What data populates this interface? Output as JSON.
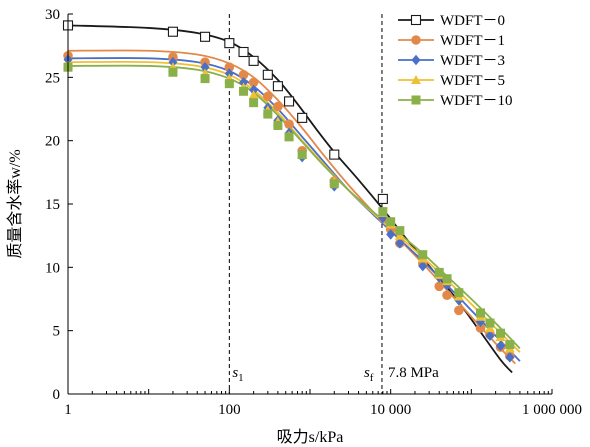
{
  "chart_data": {
    "type": "scatter",
    "title": "",
    "xlabel": "吸力s/kPa",
    "ylabel": "质量含水率w/%",
    "xscale": "log",
    "xlim": [
      1,
      1000000
    ],
    "ylim": [
      0,
      30
    ],
    "xticks": [
      1,
      100,
      10000,
      1000000
    ],
    "xtick_labels": [
      "1",
      "100",
      "10 000",
      "1 000 000"
    ],
    "yticks": [
      0,
      5,
      10,
      15,
      20,
      25,
      30
    ],
    "ytick_labels": [
      "0",
      "5",
      "10",
      "15",
      "20",
      "25",
      "30"
    ],
    "grid": false,
    "legend_position": "top-right",
    "vlines": [
      {
        "x": 100,
        "label": "s",
        "sub": "1"
      },
      {
        "x": 7800,
        "label": "s",
        "sub": "f"
      }
    ],
    "annotations": [
      {
        "text": "7.8 MPa",
        "x": 9000,
        "y": 2
      }
    ],
    "series": [
      {
        "name": "WDFT－0",
        "color": "#1a1a1a",
        "marker": "open-square",
        "points": [
          [
            1,
            29.1
          ],
          [
            20,
            28.6
          ],
          [
            50,
            28.2
          ],
          [
            100,
            27.7
          ],
          [
            150,
            27.0
          ],
          [
            200,
            26.3
          ],
          [
            300,
            25.2
          ],
          [
            400,
            24.3
          ],
          [
            550,
            23.1
          ],
          [
            800,
            21.8
          ],
          [
            2000,
            18.9
          ],
          [
            8000,
            15.4
          ]
        ],
        "fit": [
          [
            1,
            29.1
          ],
          [
            10,
            28.9
          ],
          [
            40,
            28.5
          ],
          [
            100,
            27.8
          ],
          [
            200,
            26.6
          ],
          [
            400,
            24.8
          ],
          [
            700,
            22.9
          ],
          [
            1200,
            20.9
          ],
          [
            2000,
            19.1
          ],
          [
            4000,
            16.9
          ],
          [
            8000,
            14.6
          ],
          [
            15000,
            12.4
          ],
          [
            30000,
            10.1
          ],
          [
            60000,
            7.8
          ],
          [
            120000,
            5.2
          ],
          [
            230000,
            2.7
          ],
          [
            320000,
            1.7
          ]
        ]
      },
      {
        "name": "WDFT－1",
        "color": "#e2894a",
        "marker": "circle",
        "points": [
          [
            1,
            26.7
          ],
          [
            20,
            26.6
          ],
          [
            50,
            26.2
          ],
          [
            100,
            25.8
          ],
          [
            150,
            25.2
          ],
          [
            200,
            24.6
          ],
          [
            300,
            23.5
          ],
          [
            400,
            22.7
          ],
          [
            550,
            21.3
          ],
          [
            800,
            19.2
          ],
          [
            2000,
            16.8
          ],
          [
            8000,
            13.9
          ],
          [
            10000,
            13.0
          ],
          [
            13000,
            11.9
          ],
          [
            25000,
            10.3
          ],
          [
            40000,
            8.5
          ],
          [
            50000,
            7.8
          ],
          [
            70000,
            6.6
          ],
          [
            130000,
            5.2
          ],
          [
            170000,
            4.7
          ],
          [
            230000,
            3.7
          ],
          [
            300000,
            3.0
          ]
        ],
        "fit": [
          [
            1,
            27.1
          ],
          [
            10,
            27.1
          ],
          [
            40,
            26.8
          ],
          [
            100,
            26.1
          ],
          [
            200,
            25.0
          ],
          [
            400,
            23.2
          ],
          [
            800,
            21.0
          ],
          [
            1500,
            18.8
          ],
          [
            3000,
            16.5
          ],
          [
            6000,
            14.4
          ],
          [
            12000,
            12.4
          ],
          [
            25000,
            10.3
          ],
          [
            50000,
            8.2
          ],
          [
            100000,
            6.1
          ],
          [
            200000,
            4.0
          ],
          [
            350000,
            2.4
          ]
        ]
      },
      {
        "name": "WDFT－3",
        "color": "#4a6fc7",
        "marker": "diamond",
        "points": [
          [
            1,
            26.4
          ],
          [
            20,
            26.2
          ],
          [
            50,
            25.8
          ],
          [
            100,
            25.3
          ],
          [
            150,
            24.6
          ],
          [
            200,
            24.0
          ],
          [
            300,
            22.6
          ],
          [
            400,
            21.6
          ],
          [
            550,
            20.6
          ],
          [
            800,
            18.7
          ],
          [
            2000,
            16.4
          ],
          [
            8000,
            13.9
          ],
          [
            10000,
            12.6
          ],
          [
            13000,
            11.9
          ],
          [
            25000,
            10.1
          ],
          [
            40000,
            9.2
          ],
          [
            50000,
            8.6
          ],
          [
            70000,
            7.4
          ],
          [
            130000,
            5.7
          ],
          [
            170000,
            4.6
          ],
          [
            230000,
            3.8
          ],
          [
            300000,
            2.9
          ]
        ],
        "fit": [
          [
            1,
            26.5
          ],
          [
            10,
            26.5
          ],
          [
            40,
            26.2
          ],
          [
            100,
            25.5
          ],
          [
            200,
            24.3
          ],
          [
            400,
            22.5
          ],
          [
            800,
            20.3
          ],
          [
            1500,
            18.3
          ],
          [
            3000,
            16.1
          ],
          [
            6000,
            14.2
          ],
          [
            12000,
            12.4
          ],
          [
            25000,
            10.5
          ],
          [
            50000,
            8.6
          ],
          [
            100000,
            6.6
          ],
          [
            200000,
            4.6
          ],
          [
            400000,
            2.6
          ]
        ]
      },
      {
        "name": "WDFT－5",
        "color": "#f0c034",
        "marker": "triangle",
        "points": [
          [
            1,
            26.0
          ],
          [
            20,
            25.8
          ],
          [
            50,
            25.3
          ],
          [
            100,
            24.9
          ],
          [
            150,
            24.2
          ],
          [
            200,
            23.6
          ],
          [
            300,
            22.4
          ],
          [
            400,
            21.5
          ],
          [
            550,
            20.4
          ],
          [
            800,
            18.9
          ],
          [
            2000,
            16.8
          ],
          [
            8000,
            14.3
          ],
          [
            10000,
            13.4
          ],
          [
            13000,
            12.5
          ],
          [
            25000,
            10.7
          ],
          [
            40000,
            9.4
          ],
          [
            50000,
            8.9
          ],
          [
            70000,
            7.7
          ],
          [
            130000,
            6.1
          ],
          [
            170000,
            5.2
          ],
          [
            230000,
            4.5
          ],
          [
            300000,
            3.6
          ]
        ],
        "fit": [
          [
            1,
            26.2
          ],
          [
            10,
            26.2
          ],
          [
            40,
            25.9
          ],
          [
            100,
            25.2
          ],
          [
            200,
            24.0
          ],
          [
            400,
            22.2
          ],
          [
            800,
            20.0
          ],
          [
            1500,
            18.1
          ],
          [
            3000,
            16.1
          ],
          [
            6000,
            14.3
          ],
          [
            12000,
            12.6
          ],
          [
            25000,
            10.8
          ],
          [
            50000,
            9.0
          ],
          [
            100000,
            7.1
          ],
          [
            200000,
            5.2
          ],
          [
            400000,
            3.3
          ]
        ]
      },
      {
        "name": "WDFT－10",
        "color": "#8ab04a",
        "marker": "square",
        "points": [
          [
            1,
            25.8
          ],
          [
            20,
            25.4
          ],
          [
            50,
            24.9
          ],
          [
            100,
            24.5
          ],
          [
            150,
            23.9
          ],
          [
            200,
            23.0
          ],
          [
            300,
            22.1
          ],
          [
            400,
            21.2
          ],
          [
            550,
            20.3
          ],
          [
            800,
            18.9
          ],
          [
            2000,
            16.6
          ],
          [
            8000,
            14.4
          ],
          [
            10000,
            13.6
          ],
          [
            13000,
            12.9
          ],
          [
            25000,
            11.0
          ],
          [
            40000,
            9.6
          ],
          [
            50000,
            9.1
          ],
          [
            70000,
            8.0
          ],
          [
            130000,
            6.4
          ],
          [
            170000,
            5.6
          ],
          [
            230000,
            4.8
          ],
          [
            300000,
            3.9
          ]
        ],
        "fit": [
          [
            1,
            25.9
          ],
          [
            10,
            25.9
          ],
          [
            40,
            25.6
          ],
          [
            100,
            24.9
          ],
          [
            200,
            23.8
          ],
          [
            400,
            22.0
          ],
          [
            800,
            19.9
          ],
          [
            1500,
            18.0
          ],
          [
            3000,
            16.1
          ],
          [
            6000,
            14.4
          ],
          [
            12000,
            12.8
          ],
          [
            25000,
            11.1
          ],
          [
            50000,
            9.3
          ],
          [
            100000,
            7.5
          ],
          [
            200000,
            5.6
          ],
          [
            400000,
            3.6
          ]
        ]
      }
    ]
  }
}
